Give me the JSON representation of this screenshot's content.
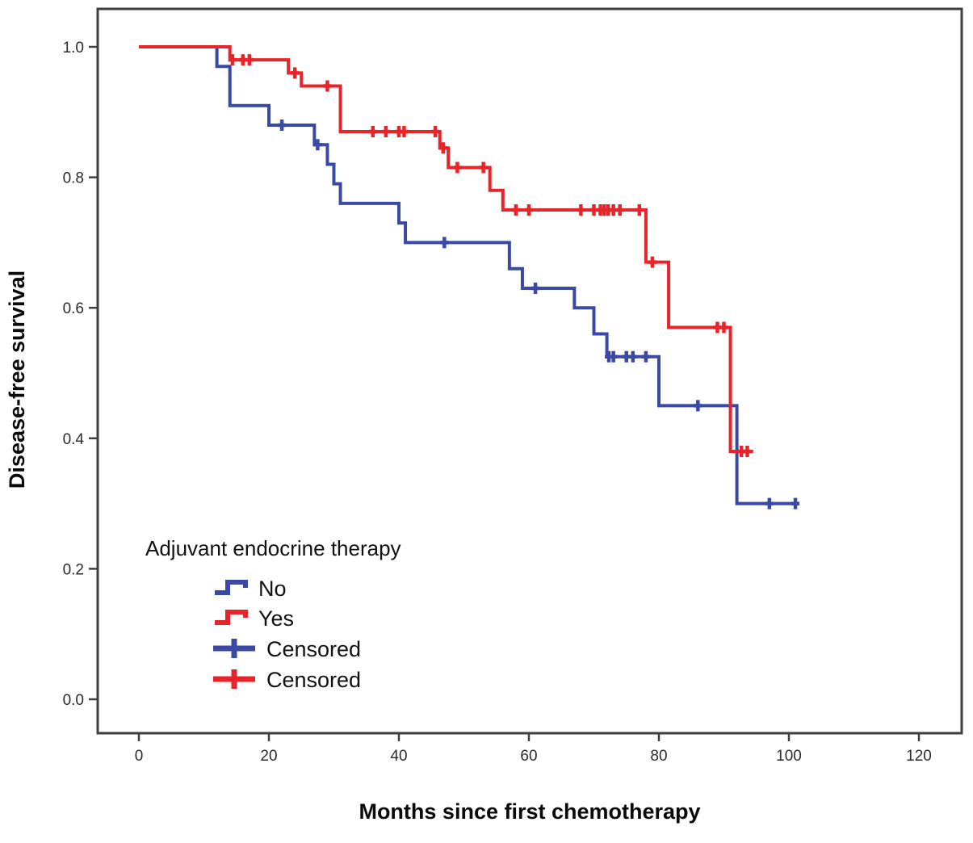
{
  "figure": {
    "background_color": "#ffffff"
  },
  "chart_data": {
    "type": "line",
    "subtype": "kaplan-meier-step",
    "title": "",
    "xlabel": "Months since first chemotherapy",
    "ylabel": "Disease-free survival",
    "axis_color": "#3f3f3f",
    "tick_label_color": "#2b2b2b",
    "xlim": [
      -6.5,
      126.5
    ],
    "ylim": [
      -0.05,
      1.06
    ],
    "x_ticks": [
      0,
      20,
      40,
      60,
      80,
      100,
      120
    ],
    "y_ticks": [
      0.0,
      0.2,
      0.4,
      0.6,
      0.8,
      1.0
    ],
    "grid": false,
    "legend": {
      "title": "Adjuvant endocrine therapy",
      "position": "lower-left-inside",
      "items": [
        {
          "label": "No",
          "color": "#3A4AA4",
          "marker": "step"
        },
        {
          "label": "Yes",
          "color": "#E8242B",
          "marker": "step"
        },
        {
          "label": "Censored",
          "color": "#3A4AA4",
          "marker": "plus"
        },
        {
          "label": "Censored",
          "color": "#E8242B",
          "marker": "plus"
        }
      ]
    },
    "series": [
      {
        "name": "No",
        "color": "#3A4AA4",
        "steps": [
          [
            0,
            1.0
          ],
          [
            12,
            0.97
          ],
          [
            14,
            0.91
          ],
          [
            20,
            0.88
          ],
          [
            27,
            0.85
          ],
          [
            29,
            0.82
          ],
          [
            30,
            0.79
          ],
          [
            31,
            0.76
          ],
          [
            40,
            0.73
          ],
          [
            41,
            0.7
          ],
          [
            57,
            0.66
          ],
          [
            59,
            0.63
          ],
          [
            67,
            0.6
          ],
          [
            70,
            0.56
          ],
          [
            72,
            0.525
          ],
          [
            80,
            0.45
          ],
          [
            92,
            0.3
          ]
        ],
        "end_x": 101.5,
        "censored": [
          [
            22,
            0.88
          ],
          [
            27.5,
            0.85
          ],
          [
            47,
            0.7
          ],
          [
            61,
            0.63
          ],
          [
            72.3,
            0.525
          ],
          [
            73,
            0.525
          ],
          [
            75,
            0.525
          ],
          [
            76,
            0.525
          ],
          [
            78,
            0.525
          ],
          [
            86,
            0.45
          ],
          [
            97,
            0.3
          ],
          [
            101,
            0.3
          ]
        ]
      },
      {
        "name": "Yes",
        "color": "#E8242B",
        "steps": [
          [
            0,
            1.0
          ],
          [
            14,
            0.98
          ],
          [
            23,
            0.96
          ],
          [
            25,
            0.94
          ],
          [
            31,
            0.87
          ],
          [
            46.3,
            0.845
          ],
          [
            47.6,
            0.815
          ],
          [
            54,
            0.78
          ],
          [
            56,
            0.75
          ],
          [
            78,
            0.67
          ],
          [
            81.5,
            0.57
          ],
          [
            91,
            0.38
          ]
        ],
        "end_x": 94.5,
        "censored": [
          [
            14.4,
            0.98
          ],
          [
            16,
            0.98
          ],
          [
            17,
            0.98
          ],
          [
            24,
            0.96
          ],
          [
            29,
            0.94
          ],
          [
            36,
            0.87
          ],
          [
            38,
            0.87
          ],
          [
            40,
            0.87
          ],
          [
            40.8,
            0.87
          ],
          [
            45.6,
            0.87
          ],
          [
            46.8,
            0.845
          ],
          [
            49,
            0.815
          ],
          [
            53,
            0.815
          ],
          [
            58,
            0.75
          ],
          [
            60,
            0.75
          ],
          [
            68,
            0.75
          ],
          [
            70,
            0.75
          ],
          [
            71,
            0.75
          ],
          [
            71.6,
            0.75
          ],
          [
            72.2,
            0.75
          ],
          [
            73,
            0.75
          ],
          [
            74,
            0.75
          ],
          [
            77,
            0.75
          ],
          [
            79,
            0.67
          ],
          [
            89,
            0.57
          ],
          [
            90,
            0.57
          ],
          [
            92.7,
            0.38
          ],
          [
            93.6,
            0.38
          ]
        ]
      }
    ]
  }
}
